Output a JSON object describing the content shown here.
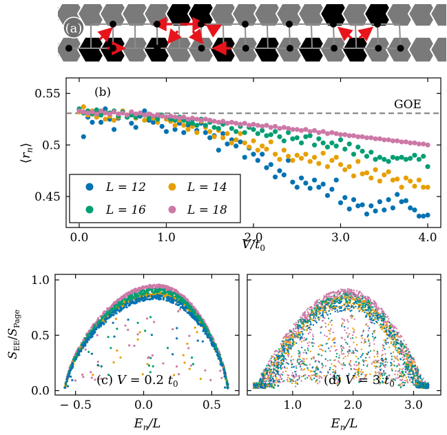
{
  "panel_a": {
    "label": "(a)",
    "colors": {
      "hex_black": "#000000",
      "hex_gray": "#7a7a7a",
      "bond": "#8c8c8c",
      "arrow": "#e8141c"
    }
  },
  "chart_data": [
    {
      "type": "scatter",
      "panel": "(b)",
      "xlabel": "V/t0",
      "ylabel": "⟨r_n⟩",
      "xlim": [
        -0.15,
        4.15
      ],
      "ylim": [
        0.42,
        0.565
      ],
      "xticks": [
        "0.0",
        "1.0",
        "2.0",
        "3.0",
        "4.0"
      ],
      "yticks": [
        "0.45",
        "0.5",
        "0.55"
      ],
      "reference_line": {
        "label": "GOE",
        "y": 0.5307,
        "style": "dashed",
        "color": "#808080"
      },
      "legend": {
        "placement": "bottom-left",
        "columns": 2
      },
      "x": [
        0,
        0.05,
        0.1,
        0.15,
        0.2,
        0.25,
        0.3,
        0.35,
        0.4,
        0.45,
        0.5,
        0.55,
        0.6,
        0.65,
        0.7,
        0.75,
        0.8,
        0.85,
        0.9,
        0.95,
        1.0,
        1.05,
        1.1,
        1.15,
        1.2,
        1.25,
        1.3,
        1.35,
        1.4,
        1.45,
        1.5,
        1.55,
        1.6,
        1.65,
        1.7,
        1.75,
        1.8,
        1.85,
        1.9,
        1.95,
        2.0,
        2.05,
        2.1,
        2.15,
        2.2,
        2.25,
        2.3,
        2.35,
        2.4,
        2.45,
        2.5,
        2.55,
        2.6,
        2.65,
        2.7,
        2.75,
        2.8,
        2.85,
        2.9,
        2.95,
        3.0,
        3.05,
        3.1,
        3.15,
        3.2,
        3.25,
        3.3,
        3.35,
        3.4,
        3.45,
        3.5,
        3.55,
        3.6,
        3.65,
        3.7,
        3.75,
        3.8,
        3.85,
        3.9,
        3.95,
        4.0
      ],
      "series": [
        {
          "name": "L=12",
          "label": "L = 12",
          "color": "#0072b2",
          "values": [
            0.534,
            0.508,
            0.527,
            0.522,
            0.532,
            0.522,
            0.535,
            0.525,
            0.515,
            0.526,
            0.532,
            0.527,
            0.521,
            0.517,
            0.528,
            0.533,
            0.524,
            0.522,
            0.528,
            0.518,
            0.513,
            0.523,
            0.515,
            0.521,
            0.512,
            0.519,
            0.525,
            0.514,
            0.521,
            0.512,
            0.507,
            0.509,
            0.495,
            0.511,
            0.501,
            0.505,
            0.499,
            0.503,
            0.488,
            0.497,
            0.491,
            0.485,
            0.491,
            0.478,
            0.481,
            0.469,
            0.475,
            0.471,
            0.485,
            0.464,
            0.459,
            0.468,
            0.463,
            0.458,
            0.466,
            0.459,
            0.462,
            0.451,
            0.457,
            0.466,
            0.444,
            0.449,
            0.438,
            0.447,
            0.441,
            0.442,
            0.433,
            0.441,
            0.436,
            0.445,
            0.437,
            0.447,
            0.439,
            0.452,
            0.445,
            0.446,
            0.439,
            0.437,
            0.431,
            0.431,
            0.432
          ]
        },
        {
          "name": "L=14",
          "label": "L = 14",
          "color": "#e69f00",
          "values": [
            0.532,
            0.537,
            0.529,
            0.533,
            0.527,
            0.531,
            0.525,
            0.528,
            0.524,
            0.527,
            0.533,
            0.529,
            0.532,
            0.526,
            0.53,
            0.524,
            0.527,
            0.526,
            0.522,
            0.528,
            0.525,
            0.523,
            0.519,
            0.524,
            0.519,
            0.515,
            0.518,
            0.512,
            0.523,
            0.517,
            0.513,
            0.508,
            0.514,
            0.507,
            0.511,
            0.502,
            0.505,
            0.511,
            0.502,
            0.498,
            0.504,
            0.495,
            0.499,
            0.496,
            0.503,
            0.491,
            0.486,
            0.495,
            0.489,
            0.485,
            0.49,
            0.487,
            0.491,
            0.484,
            0.488,
            0.482,
            0.492,
            0.479,
            0.485,
            0.488,
            0.481,
            0.476,
            0.479,
            0.47,
            0.484,
            0.472,
            0.473,
            0.468,
            0.476,
            0.465,
            0.471,
            0.474,
            0.466,
            0.467,
            0.459,
            0.468,
            0.465,
            0.46,
            0.466,
            0.459,
            0.459
          ]
        },
        {
          "name": "L=16",
          "label": "L = 16",
          "color": "#009e73",
          "values": [
            0.535,
            0.531,
            0.533,
            0.53,
            0.534,
            0.529,
            0.532,
            0.531,
            0.533,
            0.528,
            0.532,
            0.527,
            0.529,
            0.527,
            0.53,
            0.529,
            0.526,
            0.528,
            0.525,
            0.529,
            0.527,
            0.525,
            0.524,
            0.527,
            0.524,
            0.522,
            0.521,
            0.519,
            0.525,
            0.519,
            0.522,
            0.517,
            0.516,
            0.52,
            0.521,
            0.516,
            0.513,
            0.518,
            0.512,
            0.517,
            0.515,
            0.511,
            0.514,
            0.509,
            0.51,
            0.513,
            0.508,
            0.504,
            0.512,
            0.506,
            0.507,
            0.502,
            0.508,
            0.509,
            0.5,
            0.506,
            0.502,
            0.498,
            0.502,
            0.499,
            0.505,
            0.496,
            0.501,
            0.491,
            0.498,
            0.494,
            0.489,
            0.493,
            0.486,
            0.488,
            0.486,
            0.484,
            0.488,
            0.487,
            0.488,
            0.486,
            0.487,
            0.49,
            0.486,
            0.489,
            0.479
          ]
        },
        {
          "name": "L=18",
          "label": "L = 18",
          "color": "#cc79a7",
          "values": [
            0.533,
            0.532,
            0.531,
            0.532,
            0.53,
            0.533,
            0.531,
            0.53,
            0.532,
            0.53,
            0.531,
            0.529,
            0.532,
            0.53,
            0.531,
            0.529,
            0.53,
            0.528,
            0.529,
            0.528,
            0.527,
            0.528,
            0.527,
            0.526,
            0.527,
            0.525,
            0.526,
            0.525,
            0.524,
            0.525,
            0.524,
            0.523,
            0.522,
            0.523,
            0.521,
            0.522,
            0.521,
            0.52,
            0.521,
            0.519,
            0.52,
            0.519,
            0.518,
            0.519,
            0.517,
            0.518,
            0.516,
            0.517,
            0.516,
            0.515,
            0.515,
            0.514,
            0.515,
            0.513,
            0.514,
            0.512,
            0.513,
            0.511,
            0.512,
            0.511,
            0.51,
            0.51,
            0.509,
            0.509,
            0.508,
            0.508,
            0.507,
            0.507,
            0.506,
            0.506,
            0.505,
            0.505,
            0.504,
            0.504,
            0.503,
            0.503,
            0.502,
            0.502,
            0.501,
            0.501,
            0.5
          ]
        }
      ]
    },
    {
      "type": "scatter",
      "panel": "(c)",
      "annotation": "(c) V = 0.2 t0",
      "xlabel": "E_n/L",
      "ylabel": "S_EE/S_Page",
      "xlim": [
        -0.65,
        0.7
      ],
      "ylim": [
        -0.04,
        1.05
      ],
      "xticks": [
        "− 0.5",
        "0.0",
        "0.5"
      ],
      "yticks": [
        "0.0",
        "0.5",
        "1.0"
      ],
      "envelope": {
        "x_min": -0.58,
        "x_max": 0.62,
        "x_peak": 0.1,
        "peak": 0.96
      },
      "series": [
        {
          "name": "L=12",
          "color": "#0072b2"
        },
        {
          "name": "L=14",
          "color": "#e69f00"
        },
        {
          "name": "L=16",
          "color": "#009e73"
        },
        {
          "name": "L=18",
          "color": "#cc79a7"
        }
      ]
    },
    {
      "type": "scatter",
      "panel": "(d)",
      "annotation": "(d) V = 3 t0",
      "xlabel": "E_n/L",
      "xlim": [
        0.25,
        3.45
      ],
      "ylim": [
        -0.04,
        1.05
      ],
      "xticks": [
        "1.0",
        "2.0",
        "3.0"
      ],
      "envelope": {
        "x_min": 0.35,
        "x_max": 3.25,
        "x_peak": 1.9,
        "peak": 0.92
      },
      "series": [
        {
          "name": "L=12",
          "color": "#0072b2"
        },
        {
          "name": "L=14",
          "color": "#e69f00"
        },
        {
          "name": "L=16",
          "color": "#009e73"
        },
        {
          "name": "L=18",
          "color": "#cc79a7"
        }
      ]
    }
  ]
}
